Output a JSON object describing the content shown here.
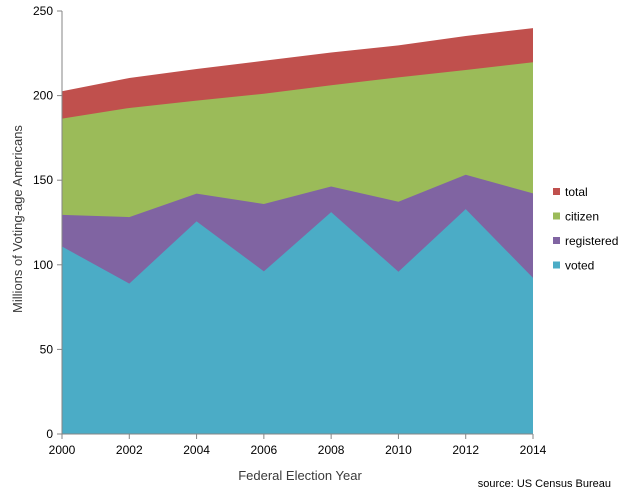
{
  "chart_data": {
    "type": "area",
    "stacked": false,
    "xlabel": "Federal Election Year",
    "ylabel": "Millions of Voting-age Americans",
    "source": "source: US Census Bureau",
    "x": [
      2000,
      2002,
      2004,
      2006,
      2008,
      2010,
      2012,
      2014
    ],
    "x_ticks": [
      "2000",
      "2002",
      "2004",
      "2006",
      "2008",
      "2010",
      "2012",
      "2014"
    ],
    "xlim": [
      2000,
      2014
    ],
    "ylim": [
      0,
      250
    ],
    "y_ticks": [
      "0",
      "50",
      "100",
      "150",
      "200",
      "250"
    ],
    "grid": false,
    "legend_position": "right",
    "series": [
      {
        "name": "total",
        "color": "#c0504d",
        "values": [
          202.6,
          210.4,
          215.7,
          220.6,
          225.5,
          229.7,
          235.2,
          239.9
        ]
      },
      {
        "name": "citizen",
        "color": "#9bbb59",
        "values": [
          186.4,
          192.7,
          197.0,
          201.1,
          206.1,
          210.8,
          215.1,
          219.7
        ]
      },
      {
        "name": "registered",
        "color": "#8064a2",
        "values": [
          129.5,
          128.2,
          142.1,
          135.9,
          146.3,
          137.3,
          153.2,
          142.2
        ]
      },
      {
        "name": "voted",
        "color": "#4bacc6",
        "values": [
          110.8,
          88.9,
          125.7,
          96.1,
          131.1,
          95.9,
          132.9,
          92.3
        ]
      }
    ]
  }
}
